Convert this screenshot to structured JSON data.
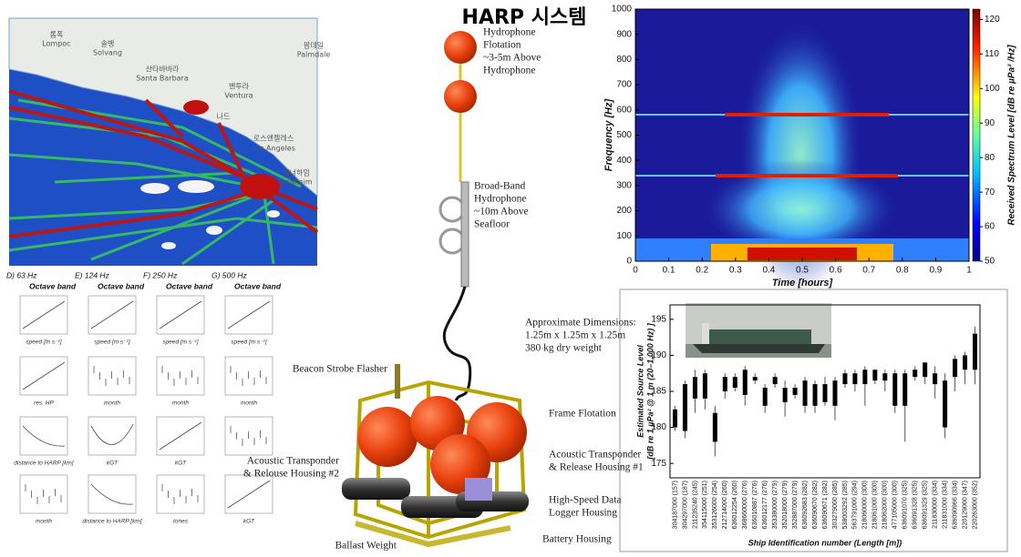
{
  "title": "HARP 시스템",
  "map": {
    "labels": [
      "롬폭",
      "Lompoc",
      "솔뱅",
      "Solvang",
      "산타바바라",
      "Santa Barbara",
      "벤투라",
      "Ventura",
      "나드",
      "팜데일",
      "Palmdale",
      "로스앤젤레스",
      "Los Angeles",
      "애너하임",
      "Anaheim"
    ]
  },
  "model_panels": {
    "columns": [
      [
        "D) 63 Hz",
        "Octave band"
      ],
      [
        "E) 124 Hz",
        "Octave band"
      ],
      [
        "F) 250 Hz",
        "Octave band"
      ],
      [
        "G) 500 Hz",
        "Octave band"
      ]
    ],
    "x_labels": [
      [
        "speed [m s⁻¹]",
        "speed [m s⁻¹]",
        "speed [m s⁻¹]",
        "speed [m s⁻¹]"
      ],
      [
        "res. HP",
        "month",
        "month",
        "month"
      ],
      [
        "distance to HARP [km]",
        "kGT",
        "kGT",
        null
      ],
      [
        "month",
        "distance to HARP [km]",
        "tones",
        "kGT"
      ]
    ]
  },
  "diagram": {
    "labels": [
      [
        "Hydrophone",
        "Flotation",
        "~3-5m Above",
        "Hydrophone"
      ],
      [
        "Broad-Band",
        "Hydrophone",
        "~10m Above",
        "Seafloor"
      ],
      [
        "Approximate Dimensions:",
        "1.25m x 1.25m x 1.25m",
        "380 kg dry weight"
      ],
      [
        "Beacon Strobe Flasher"
      ],
      [
        "Frame Flotation"
      ],
      [
        "Acoustic Transponder",
        "& Release Housing #1"
      ],
      [
        "Acoustic Transponder",
        "& Relouse Housing #2"
      ],
      [
        "High-Speed Data",
        "Logger Housing"
      ],
      [
        "Battery Housing"
      ],
      [
        "Ballast Weight"
      ]
    ]
  },
  "chart_data": [
    {
      "type": "heatmap",
      "x_label": "Time [hours]",
      "y_label": "Frequency [Hz]",
      "colorbar_label": "Received Spectrum Level [dB re µPa² /Hz]",
      "xlim": [
        0,
        1
      ],
      "xticks": [
        0,
        0.1,
        0.2,
        0.3,
        0.4,
        0.5,
        0.6,
        0.7,
        0.8,
        0.9,
        1
      ],
      "ylim": [
        0,
        1000
      ],
      "yticks": [
        0,
        100,
        200,
        300,
        400,
        500,
        600,
        700,
        800,
        900,
        1000
      ],
      "clim": [
        50,
        123
      ],
      "cticks": [
        50,
        60,
        70,
        80,
        90,
        100,
        110,
        120
      ]
    },
    {
      "type": "box",
      "y_label": [
        "Estimated Source Level",
        "[dB re 1 µPa² @ 1 m (20–1,000 Hz) ]"
      ],
      "x_label": "Ship Identification number (Length [m])",
      "categories": [
        "304187000 (157)",
        "304297000 (187)",
        "211235240 (245)",
        "354115000 (251)",
        "353126000 (254)",
        "212714000 (260)",
        "636012254 (260)",
        "368660000 (276)",
        "636010887 (276)",
        "636012177 (276)",
        "353380000 (279)",
        "352018000 (279)",
        "352887000 (279)",
        "636092683 (282)",
        "636090670 (282)",
        "636090671 (282)",
        "303279000 (285)",
        "538003292 (285)",
        "563791000 (294)",
        "218060000 (300)",
        "218061000 (300)",
        "218062000 (300)",
        "477105000 (300)",
        "636091070 (325)",
        "636091328 (325)",
        "636091329 (325)",
        "211830000 (334)",
        "211831000 (334)",
        "636090966 (334)",
        "220129000 (347)",
        "220263000 (352)"
      ],
      "whisker_low": [
        179.5,
        178.5,
        182,
        182.5,
        176,
        184,
        185,
        183,
        186,
        182,
        185.5,
        181.5,
        184,
        182,
        182,
        183,
        181,
        185.5,
        185,
        183,
        186,
        185,
        182,
        178,
        186.5,
        186,
        184,
        178.5,
        185,
        186,
        186
      ],
      "q1": [
        180,
        179.5,
        184,
        184,
        178,
        185,
        185.5,
        184.5,
        186.5,
        183,
        186,
        183.5,
        184.5,
        183,
        183,
        183.5,
        183,
        186,
        186,
        186,
        186.5,
        186.5,
        183,
        183,
        187,
        187,
        186,
        180,
        187,
        188,
        188
      ],
      "q3": [
        182.5,
        186,
        187,
        187.5,
        182,
        187,
        187,
        188,
        187,
        185.5,
        187,
        185.5,
        185.5,
        186.5,
        186,
        186,
        186.5,
        187.5,
        187.5,
        188,
        188,
        187.5,
        187.5,
        187.5,
        188,
        189,
        187.5,
        186.5,
        189.5,
        190,
        193
      ],
      "whisker_high": [
        183,
        186.5,
        188,
        188,
        183,
        187.5,
        187.5,
        188.5,
        187.5,
        186,
        187.5,
        186.5,
        186,
        187,
        186.5,
        187,
        187,
        188,
        188,
        188.5,
        188,
        188,
        188,
        188,
        188.5,
        189,
        188.5,
        187.5,
        190,
        190.5,
        194
      ],
      "ylim": [
        173,
        197
      ],
      "yticks": [
        175,
        180,
        185,
        190,
        195
      ]
    }
  ]
}
